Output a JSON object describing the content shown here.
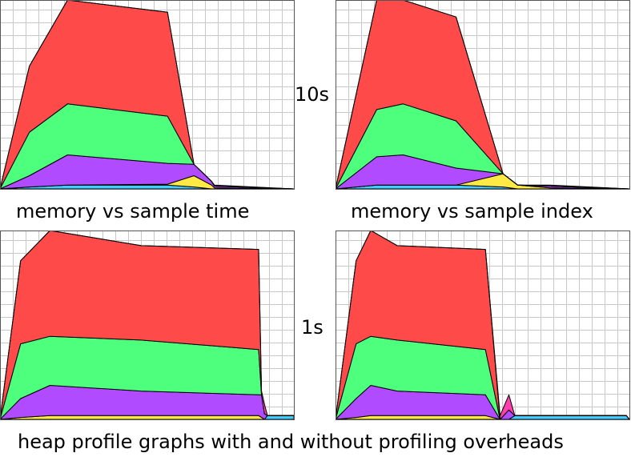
{
  "labels": {
    "top_left": "memory vs sample time",
    "top_right": "memory vs sample index",
    "row_top": "10s",
    "row_bottom": "1s",
    "caption": "heap profile graphs with and without profiling overheads"
  },
  "chart_data": [
    {
      "id": "top-left",
      "type": "area",
      "stacked": true,
      "grid": true,
      "title": "",
      "xlabel": "",
      "ylabel": "",
      "xlim": [
        0,
        100
      ],
      "ylim": [
        0,
        100
      ],
      "x": [
        0,
        10,
        23,
        57,
        66,
        72,
        73,
        100
      ],
      "series": [
        {
          "color": "#44ccff",
          "values": [
            0,
            1,
            2,
            2,
            1,
            0,
            0,
            0
          ]
        },
        {
          "color": "#ffe944",
          "values": [
            0,
            0,
            0,
            0.5,
            6,
            2,
            0.5,
            0
          ]
        },
        {
          "color": "#b14bff",
          "values": [
            0,
            6,
            16,
            11,
            6,
            2,
            1,
            0
          ]
        },
        {
          "color": "#4dff7d",
          "values": [
            0,
            23,
            27,
            25,
            0,
            0,
            0,
            0
          ]
        },
        {
          "color": "#ff4a4a",
          "values": [
            0,
            35,
            55,
            55,
            0,
            0,
            0,
            0
          ]
        },
        {
          "color": "#ff3fae",
          "values": [
            0,
            0,
            0,
            0,
            0,
            0,
            0.5,
            0
          ]
        }
      ]
    },
    {
      "id": "top-right",
      "type": "area",
      "stacked": true,
      "grid": true,
      "title": "",
      "xlabel": "",
      "ylabel": "",
      "xlim": [
        0,
        100
      ],
      "ylim": [
        0,
        100
      ],
      "x": [
        0,
        14,
        23,
        41,
        57,
        62,
        73,
        100
      ],
      "series": [
        {
          "color": "#44ccff",
          "values": [
            0,
            2,
            2,
            2,
            1,
            0,
            0,
            0
          ]
        },
        {
          "color": "#ffe944",
          "values": [
            0,
            0,
            0,
            0,
            7,
            2,
            0.5,
            0
          ]
        },
        {
          "color": "#b14bff",
          "values": [
            0,
            15,
            16,
            9,
            0,
            0,
            1,
            0
          ]
        },
        {
          "color": "#4dff7d",
          "values": [
            0,
            25,
            27,
            25,
            0,
            0,
            0,
            0
          ]
        },
        {
          "color": "#ff4a4a",
          "values": [
            0,
            58,
            55,
            55,
            0,
            0,
            0,
            0
          ]
        },
        {
          "color": "#ff3fae",
          "values": [
            0,
            0,
            0,
            0,
            0,
            0,
            0.5,
            0
          ]
        }
      ]
    },
    {
      "id": "bottom-left",
      "type": "area",
      "stacked": true,
      "grid": true,
      "title": "",
      "xlabel": "",
      "ylabel": "",
      "xlim": [
        0,
        100
      ],
      "ylim": [
        0,
        100
      ],
      "x": [
        0,
        7,
        17,
        48,
        88,
        89,
        90,
        91,
        92,
        100
      ],
      "series": [
        {
          "color": "#44ccff",
          "values": [
            0,
            0,
            0,
            0,
            0,
            0,
            0,
            2,
            2,
            2
          ]
        },
        {
          "color": "#ffe944",
          "values": [
            0,
            1,
            2,
            2,
            2,
            1,
            0,
            0,
            0,
            0
          ]
        },
        {
          "color": "#b14bff",
          "values": [
            0,
            10,
            16,
            13,
            11,
            12,
            3,
            0,
            0,
            0
          ]
        },
        {
          "color": "#4dff7d",
          "values": [
            0,
            29,
            26,
            27,
            24,
            0,
            0,
            0,
            0,
            0
          ]
        },
        {
          "color": "#ff4a4a",
          "values": [
            0,
            44,
            56,
            50,
            53,
            0,
            0,
            0,
            0,
            0
          ]
        },
        {
          "color": "#ff3fae",
          "values": [
            0,
            0,
            0,
            0,
            0,
            2,
            5,
            0,
            0,
            0
          ]
        }
      ]
    },
    {
      "id": "bottom-right",
      "type": "area",
      "stacked": true,
      "grid": true,
      "title": "",
      "xlabel": "",
      "ylabel": "",
      "xlim": [
        0,
        100
      ],
      "ylim": [
        0,
        100
      ],
      "x": [
        0,
        7,
        12,
        21,
        51,
        56,
        59,
        61,
        65,
        99,
        100
      ],
      "series": [
        {
          "color": "#44ccff",
          "values": [
            0,
            0,
            0,
            0,
            0,
            0,
            0,
            2,
            2,
            2,
            0
          ]
        },
        {
          "color": "#ffe944",
          "values": [
            0,
            1,
            2,
            2,
            2,
            0,
            0,
            0,
            0,
            0,
            0
          ]
        },
        {
          "color": "#b14bff",
          "values": [
            0,
            10,
            16,
            13,
            11,
            0,
            5,
            0,
            0,
            0,
            0
          ]
        },
        {
          "color": "#4dff7d",
          "values": [
            0,
            29,
            26,
            27,
            24,
            0,
            0,
            0,
            0,
            0,
            0
          ]
        },
        {
          "color": "#ff4a4a",
          "values": [
            0,
            44,
            56,
            50,
            53,
            0,
            0,
            0,
            0,
            0,
            0
          ]
        },
        {
          "color": "#ff3fae",
          "values": [
            0,
            0,
            0,
            0,
            0,
            2,
            8,
            0,
            0,
            0,
            0
          ]
        }
      ]
    }
  ]
}
